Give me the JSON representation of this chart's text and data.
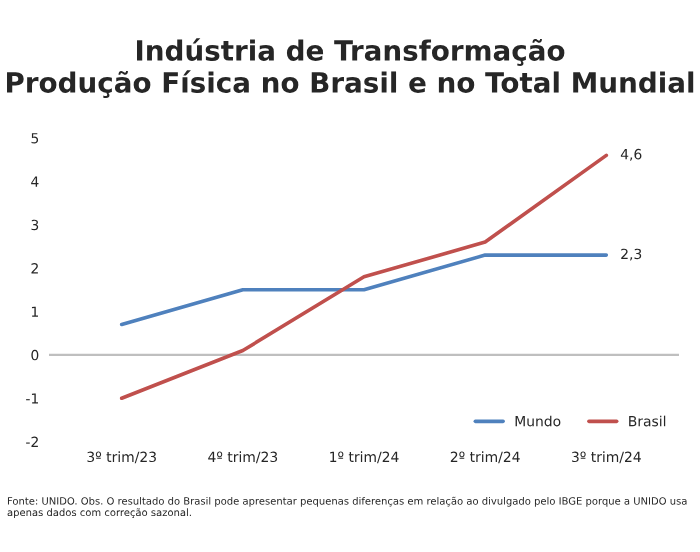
{
  "chart_data": {
    "type": "line",
    "title": "Indústria de Transformação\nProdução Física no Brasil e no Total Mundial",
    "categories": [
      "3º trim/23",
      "4º trim/23",
      "1º trim/24",
      "2º trim/24",
      "3º trim/24"
    ],
    "series": [
      {
        "name": "Mundo",
        "color": "#4f81bd",
        "values": [
          0.7,
          1.5,
          1.5,
          2.3,
          2.3
        ],
        "value_labels": [
          null,
          null,
          null,
          null,
          "2,3"
        ]
      },
      {
        "name": "Brasil",
        "color": "#c0504d",
        "values": [
          -1.0,
          0.1,
          1.8,
          2.6,
          4.6
        ],
        "value_labels": [
          null,
          null,
          null,
          null,
          "4,6"
        ]
      }
    ],
    "ylim": [
      -2,
      5
    ],
    "yticks": [
      -2,
      -1,
      0,
      1,
      2,
      3,
      4,
      5
    ],
    "ref_lines": [
      {
        "axis": "y",
        "value": 0,
        "color": "#bfbfbf"
      }
    ],
    "grid": false,
    "legend": "bottom right",
    "marker": "none",
    "line_style": "solid",
    "annotations": [
      "Fonte: UNIDO. Obs. O resultado do Brasil pode apresentar pequenas diferenças em relação ao divulgado pelo IBGE porque a UNIDO usa apenas dados com correção sazonal."
    ]
  }
}
